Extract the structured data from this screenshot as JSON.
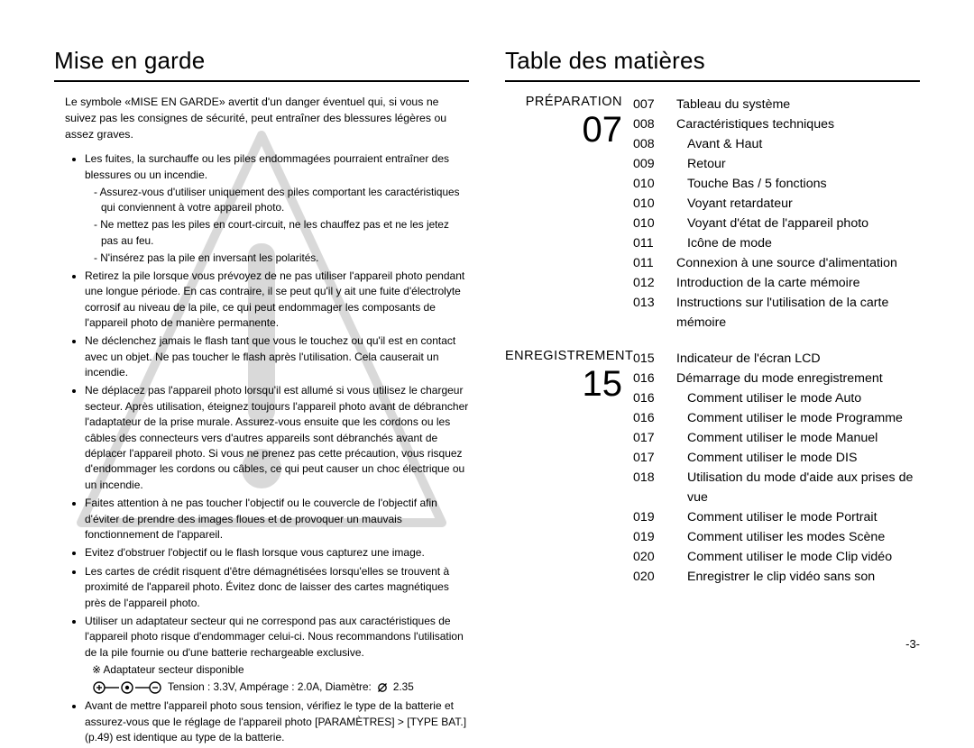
{
  "left": {
    "heading": "Mise en garde",
    "intro": "Le symbole «MISE EN GARDE» avertit d'un danger éventuel qui, si vous ne suivez pas les consignes de sécurité, peut entraîner des blessures légères ou assez graves.",
    "bullets": [
      {
        "text": "Les fuites, la surchauffe ou les piles endommagées pourraient entraîner des blessures ou un incendie.",
        "sub": [
          "Assurez-vous d'utiliser uniquement des piles comportant les caractéristiques qui conviennent à votre appareil photo.",
          "Ne mettez pas les piles en court-circuit, ne les chauffez pas et ne les jetez pas au feu.",
          "N'insérez pas la pile en inversant les polarités."
        ]
      },
      {
        "text": "Retirez la pile lorsque vous prévoyez de ne pas utiliser l'appareil photo pendant une longue période. En cas contraire, il se peut qu'il y ait une fuite d'électrolyte corrosif au niveau de la pile, ce qui peut endommager les composants de l'appareil photo de manière permanente."
      },
      {
        "text": "Ne déclenchez jamais le flash tant que vous le touchez ou qu'il est en contact avec un objet. Ne pas toucher le flash après l'utilisation. Cela causerait un incendie."
      },
      {
        "text": "Ne déplacez pas l'appareil photo lorsqu'il est allumé si vous utilisez le chargeur secteur. Après utilisation, éteignez toujours l'appareil photo avant de débrancher l'adaptateur de la prise murale. Assurez-vous ensuite que les cordons ou les câbles des connecteurs vers d'autres appareils sont débranchés avant de déplacer l'appareil photo. Si vous ne prenez pas cette précaution, vous risquez d'endommager les cordons ou câbles, ce qui peut causer un choc électrique ou un incendie."
      },
      {
        "text": "Faites attention à ne pas toucher l'objectif ou le couvercle de l'objectif afin d'éviter de prendre des images floues et de provoquer un mauvais fonctionnement de l'appareil."
      },
      {
        "text": "Evitez d'obstruer l'objectif ou le flash lorsque vous capturez une image."
      },
      {
        "text": "Les cartes de crédit risquent d'être démagnétisées lorsqu'elles se trouvent à proximité de l'appareil photo. Évitez donc de laisser des cartes magnétiques près de l'appareil photo."
      },
      {
        "text": "Utiliser un adaptateur secteur qui ne correspond pas aux caractéristiques de l'appareil photo risque d'endommager celui-ci. Nous recommandons l'utilisation de la pile fournie ou d'une batterie rechargeable exclusive.",
        "note": "※ Adaptateur secteur disponible",
        "adapter_spec": "Tension : 3.3V, Ampérage : 2.0A, Diamètre:",
        "adapter_diam": "2.35"
      },
      {
        "text": "Avant de mettre l'appareil photo sous tension, vérifiez le type de la batterie et assurez-vous que le réglage de l'appareil photo [PARAMÈTRES] > [TYPE BAT.] (p.49) est identique au type de la batterie."
      }
    ]
  },
  "right": {
    "heading": "Table des matières",
    "sections": [
      {
        "label": "PRÉPARATION",
        "big": "07",
        "items": [
          {
            "page": "007",
            "title": "Tableau du système",
            "indent": false
          },
          {
            "page": "008",
            "title": "Caractéristiques techniques",
            "indent": false
          },
          {
            "page": "008",
            "title": "Avant & Haut",
            "indent": true
          },
          {
            "page": "009",
            "title": "Retour",
            "indent": true
          },
          {
            "page": "010",
            "title": "Touche Bas / 5 fonctions",
            "indent": true
          },
          {
            "page": "010",
            "title": "Voyant retardateur",
            "indent": true
          },
          {
            "page": "010",
            "title": "Voyant d'état de l'appareil photo",
            "indent": true
          },
          {
            "page": "011",
            "title": "Icône de mode",
            "indent": true
          },
          {
            "page": "011",
            "title": "Connexion à une source d'alimentation",
            "indent": false
          },
          {
            "page": "012",
            "title": "Introduction de la carte mémoire",
            "indent": false
          },
          {
            "page": "013",
            "title": "Instructions sur l'utilisation de la carte mémoire",
            "indent": false
          }
        ]
      },
      {
        "label": "ENREGISTREMENT",
        "big": "15",
        "items": [
          {
            "page": "015",
            "title": "Indicateur de l'écran LCD",
            "indent": false
          },
          {
            "page": "016",
            "title": "Démarrage du mode enregistrement",
            "indent": false
          },
          {
            "page": "016",
            "title": "Comment utiliser le mode Auto",
            "indent": true
          },
          {
            "page": "016",
            "title": "Comment utiliser le mode Programme",
            "indent": true
          },
          {
            "page": "017",
            "title": "Comment utiliser le mode Manuel",
            "indent": true
          },
          {
            "page": "017",
            "title": "Comment utiliser le mode DIS",
            "indent": true
          },
          {
            "page": "018",
            "title": "Utilisation du mode d'aide aux prises de vue",
            "indent": true
          },
          {
            "page": "019",
            "title": "Comment utiliser le mode Portrait",
            "indent": true
          },
          {
            "page": "019",
            "title": "Comment utiliser les modes Scène",
            "indent": true
          },
          {
            "page": "020",
            "title": "Comment utiliser le mode Clip vidéo",
            "indent": true
          },
          {
            "page": "020",
            "title": "Enregistrer le clip vidéo sans son",
            "indent": true
          }
        ]
      }
    ]
  },
  "page_number": "-3-"
}
